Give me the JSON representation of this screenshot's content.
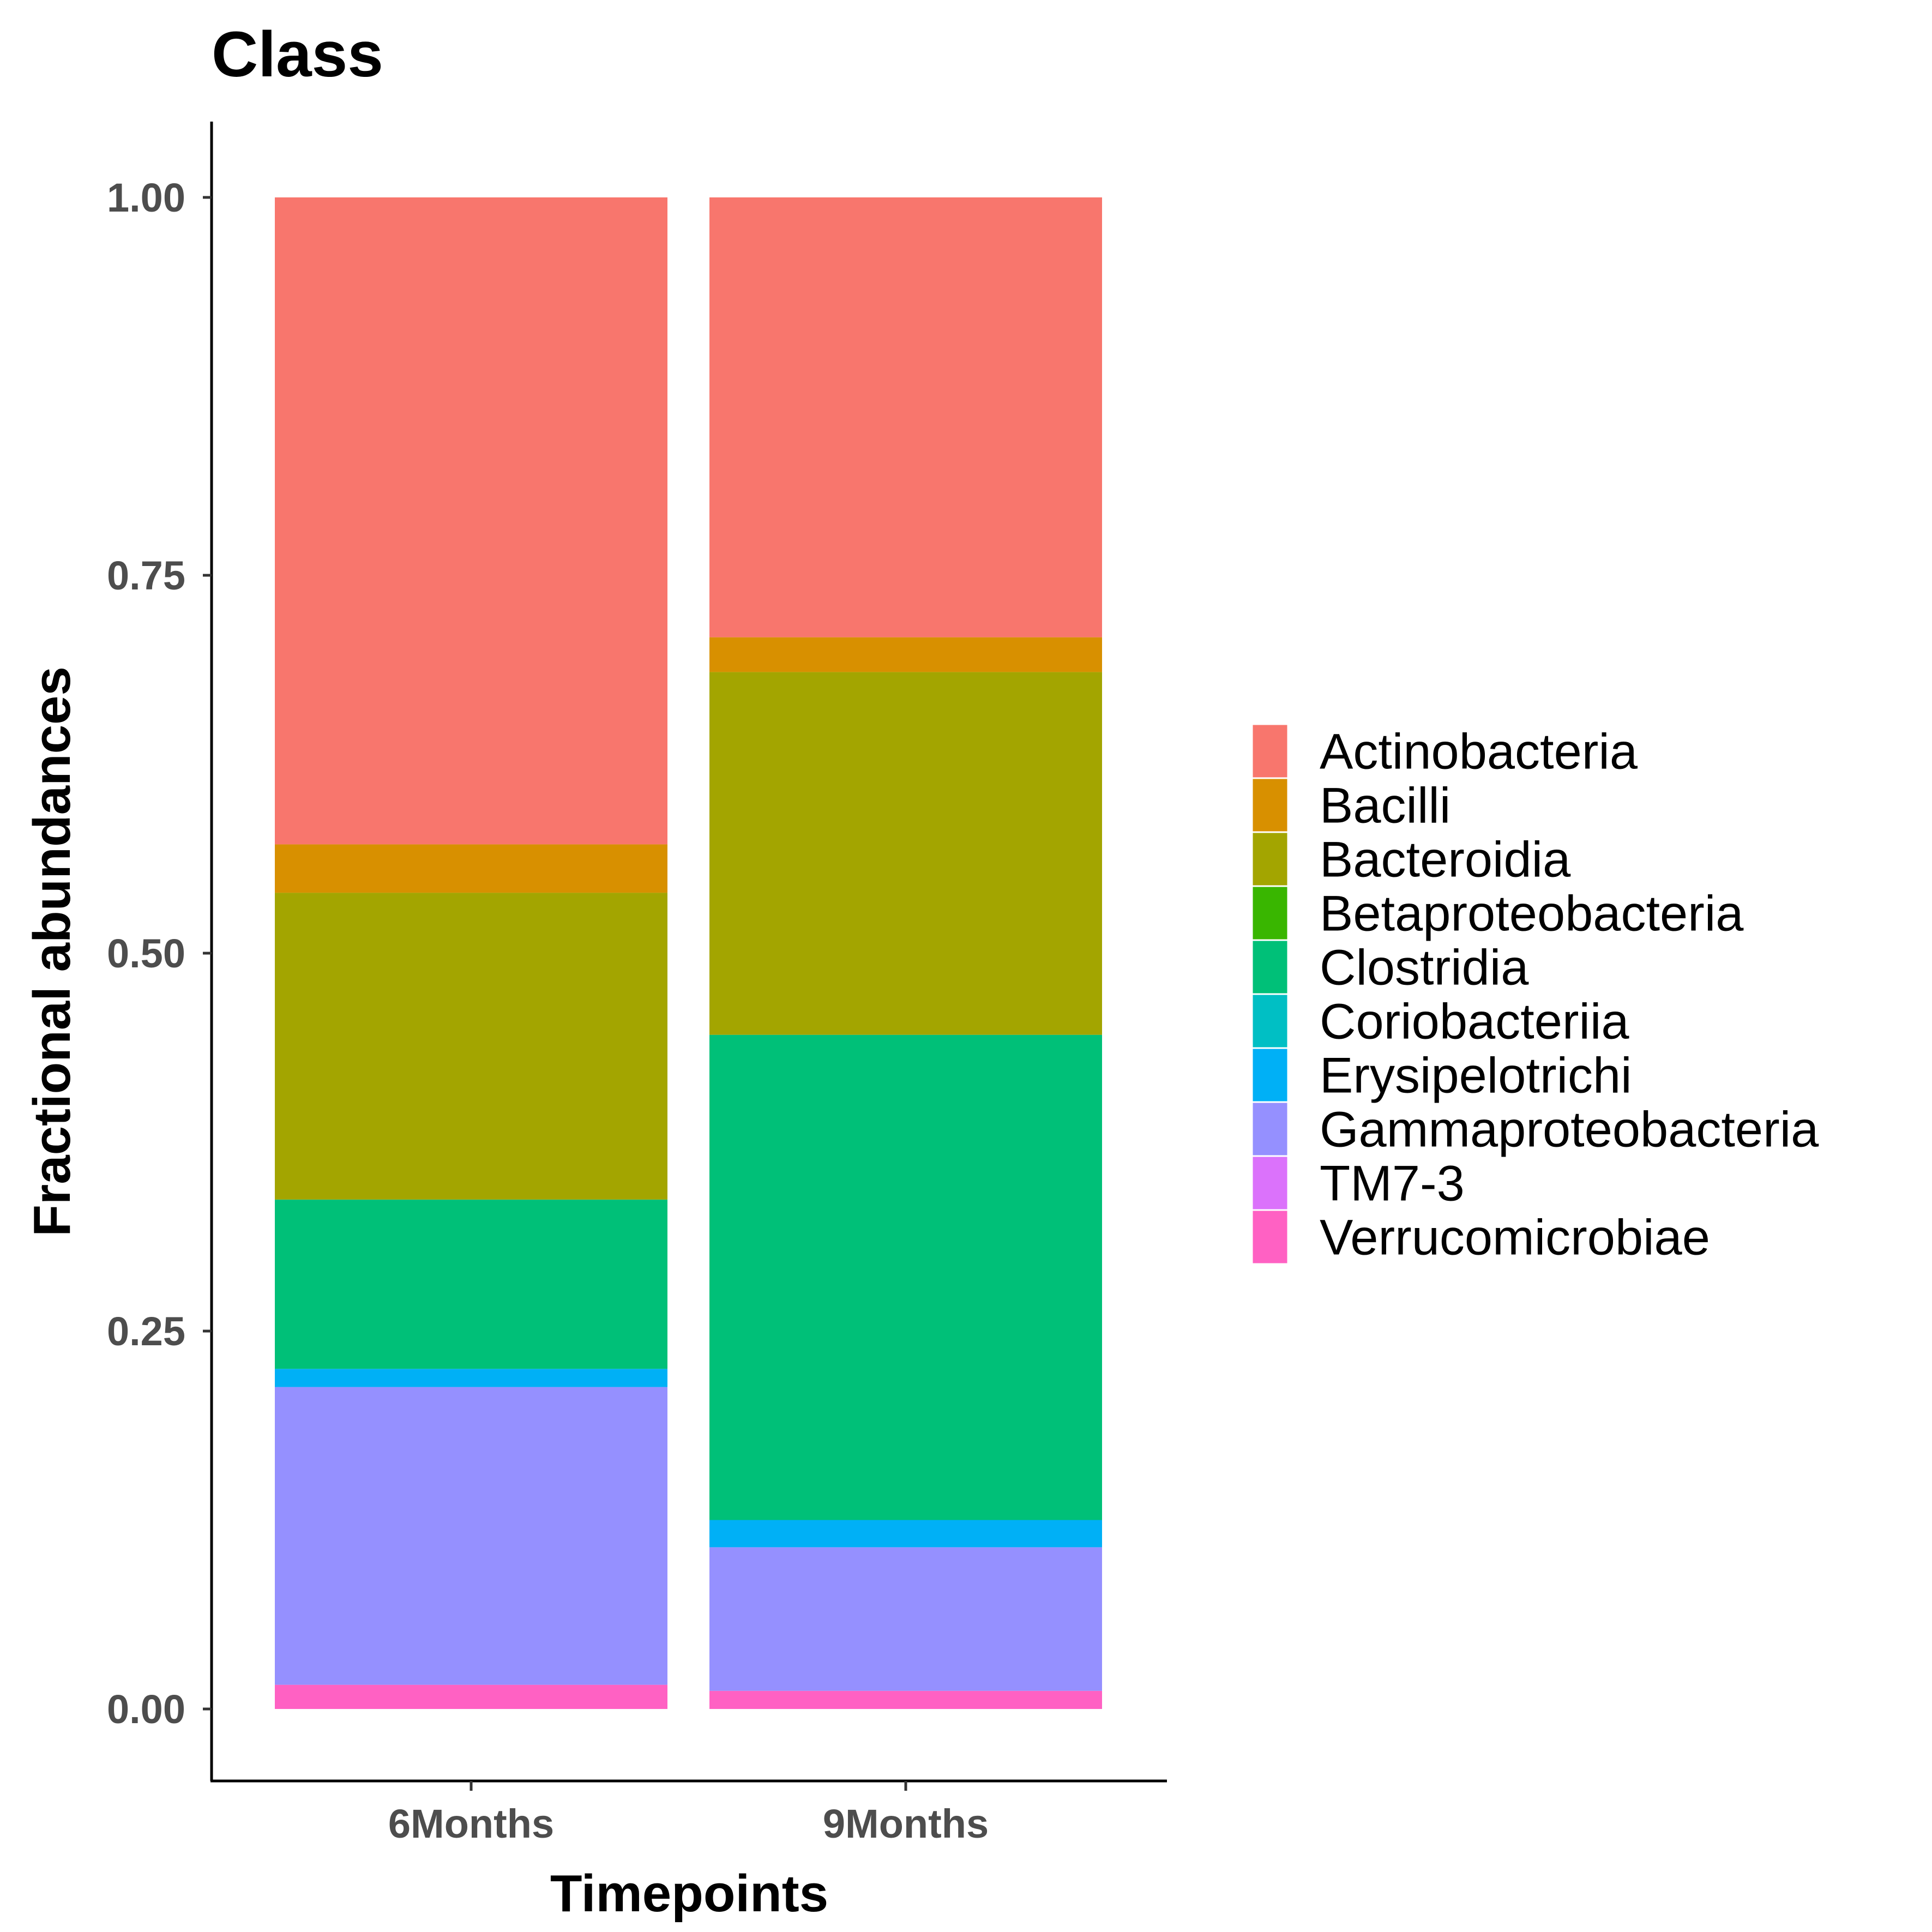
{
  "chart_data": {
    "type": "bar",
    "stacked": true,
    "title": "Class",
    "xlabel": "Timepoints",
    "ylabel": "Fractional abundances",
    "ylim": [
      -0.05,
      1.05
    ],
    "yticks": [
      "0.00",
      "0.25",
      "0.50",
      "0.75",
      "1.00"
    ],
    "categories": [
      "6Months",
      "9Months"
    ],
    "legend_position": "right",
    "grid": false,
    "series": [
      {
        "name": "Verrucomicrobiae",
        "color": "#FF61C3",
        "values": [
          0.016,
          0.012
        ]
      },
      {
        "name": "TM7-3",
        "color": "#DB72FB",
        "values": [
          0.0,
          0.0
        ]
      },
      {
        "name": "Gammaproteobacteria",
        "color": "#9590FF",
        "values": [
          0.197,
          0.095
        ]
      },
      {
        "name": "Erysipelotrichi",
        "color": "#00B0F6",
        "values": [
          0.012,
          0.018
        ]
      },
      {
        "name": "Coriobacteriia",
        "color": "#00BFC4",
        "values": [
          0.0,
          0.0
        ]
      },
      {
        "name": "Clostridia",
        "color": "#00C078",
        "values": [
          0.112,
          0.321
        ]
      },
      {
        "name": "Betaproteobacteria",
        "color": "#39B600",
        "values": [
          0.0,
          0.0
        ]
      },
      {
        "name": "Bacteroidia",
        "color": "#A3A500",
        "values": [
          0.203,
          0.24
        ]
      },
      {
        "name": "Bacilli",
        "color": "#D89000",
        "values": [
          0.032,
          0.023
        ]
      },
      {
        "name": "Actinobacteria",
        "color": "#F8766D",
        "values": [
          0.428,
          0.291
        ]
      }
    ],
    "legend_order": [
      "Actinobacteria",
      "Bacilli",
      "Bacteroidia",
      "Betaproteobacteria",
      "Clostridia",
      "Coriobacteriia",
      "Erysipelotrichi",
      "Gammaproteobacteria",
      "TM7-3",
      "Verrucomicrobiae"
    ]
  }
}
